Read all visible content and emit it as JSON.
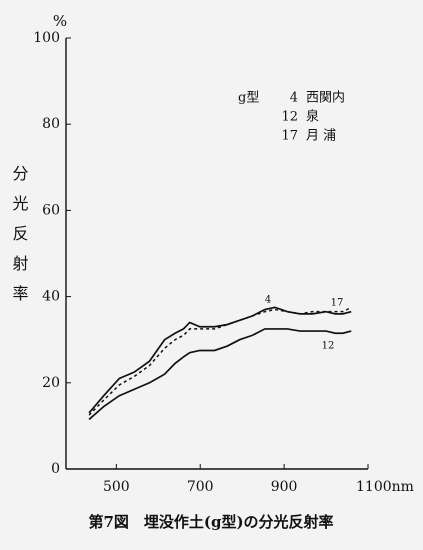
{
  "chart_data": {
    "type": "line",
    "y_unit": "%",
    "y_label": "分光反射率",
    "caption": "第7図　埋没作土(g型)の分光反射率",
    "legend_title": "g型",
    "x": [
      435,
      470,
      507,
      543,
      579,
      615,
      640,
      660,
      675,
      699,
      734,
      764,
      794,
      824,
      854,
      878,
      908,
      938,
      968,
      1000,
      1022,
      1040,
      1060
    ],
    "series": [
      {
        "name": "西関内",
        "label": "4",
        "color": "#111111",
        "dash": false,
        "values": [
          13,
          17,
          21,
          22.5,
          25,
          30,
          31.5,
          32.5,
          34,
          33,
          33,
          33.5,
          34.5,
          35.5,
          37,
          37.5,
          36.5,
          36,
          36,
          36.5,
          36,
          36,
          36.5
        ]
      },
      {
        "name": "泉",
        "label": "12",
        "color": "#111111",
        "dash": false,
        "values": [
          11.5,
          14.5,
          17,
          18.5,
          20,
          22,
          24.5,
          26,
          27,
          27.5,
          27.5,
          28.5,
          30,
          31,
          32.5,
          32.5,
          32.5,
          32,
          32,
          32,
          31.5,
          31.5,
          32
        ]
      },
      {
        "name": "月 浦",
        "label": "17",
        "color": "#111111",
        "dash": true,
        "values": [
          12.5,
          16,
          19.5,
          21.5,
          24,
          28,
          30,
          31,
          32.5,
          32.5,
          32.5,
          33.5,
          34.5,
          35.5,
          36.5,
          37,
          36.5,
          36,
          36.5,
          36.5,
          36.5,
          36.5,
          37.5
        ]
      }
    ],
    "xlim": [
      380,
      1100
    ],
    "ylim": [
      0,
      100
    ],
    "xticks": [
      500,
      700,
      900,
      {
        "value": 1100,
        "label": "1100nm"
      }
    ],
    "yticks": [
      0,
      20,
      40,
      60,
      80,
      100
    ]
  }
}
